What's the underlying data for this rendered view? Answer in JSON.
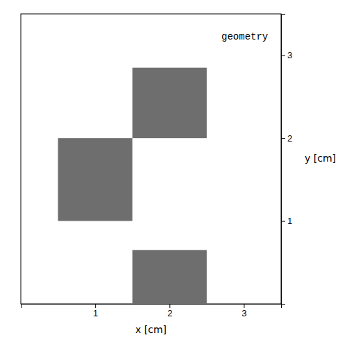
{
  "chart_data": {
    "type": "rectangles",
    "x_label": "x [cm]",
    "y_label": "y [cm]",
    "annotation": "geometry",
    "color": "#6e6e6e",
    "rects": [
      {
        "x": 1.5,
        "y": 2.0,
        "width": 1.0,
        "height": 0.85
      },
      {
        "x": 0.5,
        "y": 1.0,
        "width": 1.0,
        "height": 1.0
      },
      {
        "x": 1.5,
        "y": 0.0,
        "width": 1.0,
        "height": 0.65
      }
    ],
    "xlim": [
      0.0,
      3.5
    ],
    "ylim": [
      0.0,
      3.5
    ],
    "xticks": [
      1,
      2,
      3
    ],
    "yticks": [
      1,
      2,
      3
    ],
    "grid": false
  }
}
